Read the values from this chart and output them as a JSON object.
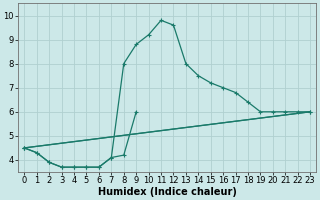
{
  "xlabel": "Humidex (Indice chaleur)",
  "bg_color": "#cce8e8",
  "grid_color": "#b0d0d0",
  "line_color": "#1a7a6a",
  "xlim": [
    -0.5,
    23.5
  ],
  "ylim": [
    3.5,
    10.5
  ],
  "xticks": [
    0,
    1,
    2,
    3,
    4,
    5,
    6,
    7,
    8,
    9,
    10,
    11,
    12,
    13,
    14,
    15,
    16,
    17,
    18,
    19,
    20,
    21,
    22,
    23
  ],
  "yticks": [
    4,
    5,
    6,
    7,
    8,
    9,
    10
  ],
  "series_main_x": [
    0,
    1,
    2,
    3,
    4,
    5,
    6,
    7,
    8,
    9,
    10,
    11,
    12,
    13,
    14,
    15,
    16,
    17,
    18,
    19,
    20,
    21,
    22,
    23
  ],
  "series_main_y": [
    4.5,
    4.3,
    3.9,
    3.7,
    3.7,
    3.7,
    3.7,
    4.1,
    8.0,
    8.8,
    9.2,
    9.8,
    9.6,
    8.0,
    7.5,
    7.2,
    7.0,
    6.8,
    6.4,
    6.0,
    6.0,
    6.0,
    6.0,
    6.0
  ],
  "series_spike_x": [
    0,
    1,
    2,
    3,
    4,
    5,
    6,
    7,
    8,
    9
  ],
  "series_spike_y": [
    4.5,
    4.3,
    3.9,
    3.7,
    3.7,
    3.7,
    3.7,
    4.1,
    4.2,
    6.0
  ],
  "series_line1_x": [
    0,
    23
  ],
  "series_line1_y": [
    4.5,
    6.0
  ],
  "series_line2_x": [
    0,
    23
  ],
  "series_line2_y": [
    4.5,
    6.0
  ],
  "line_width": 0.9,
  "marker_size": 2.5,
  "xlabel_fontsize": 7,
  "tick_fontsize": 6
}
